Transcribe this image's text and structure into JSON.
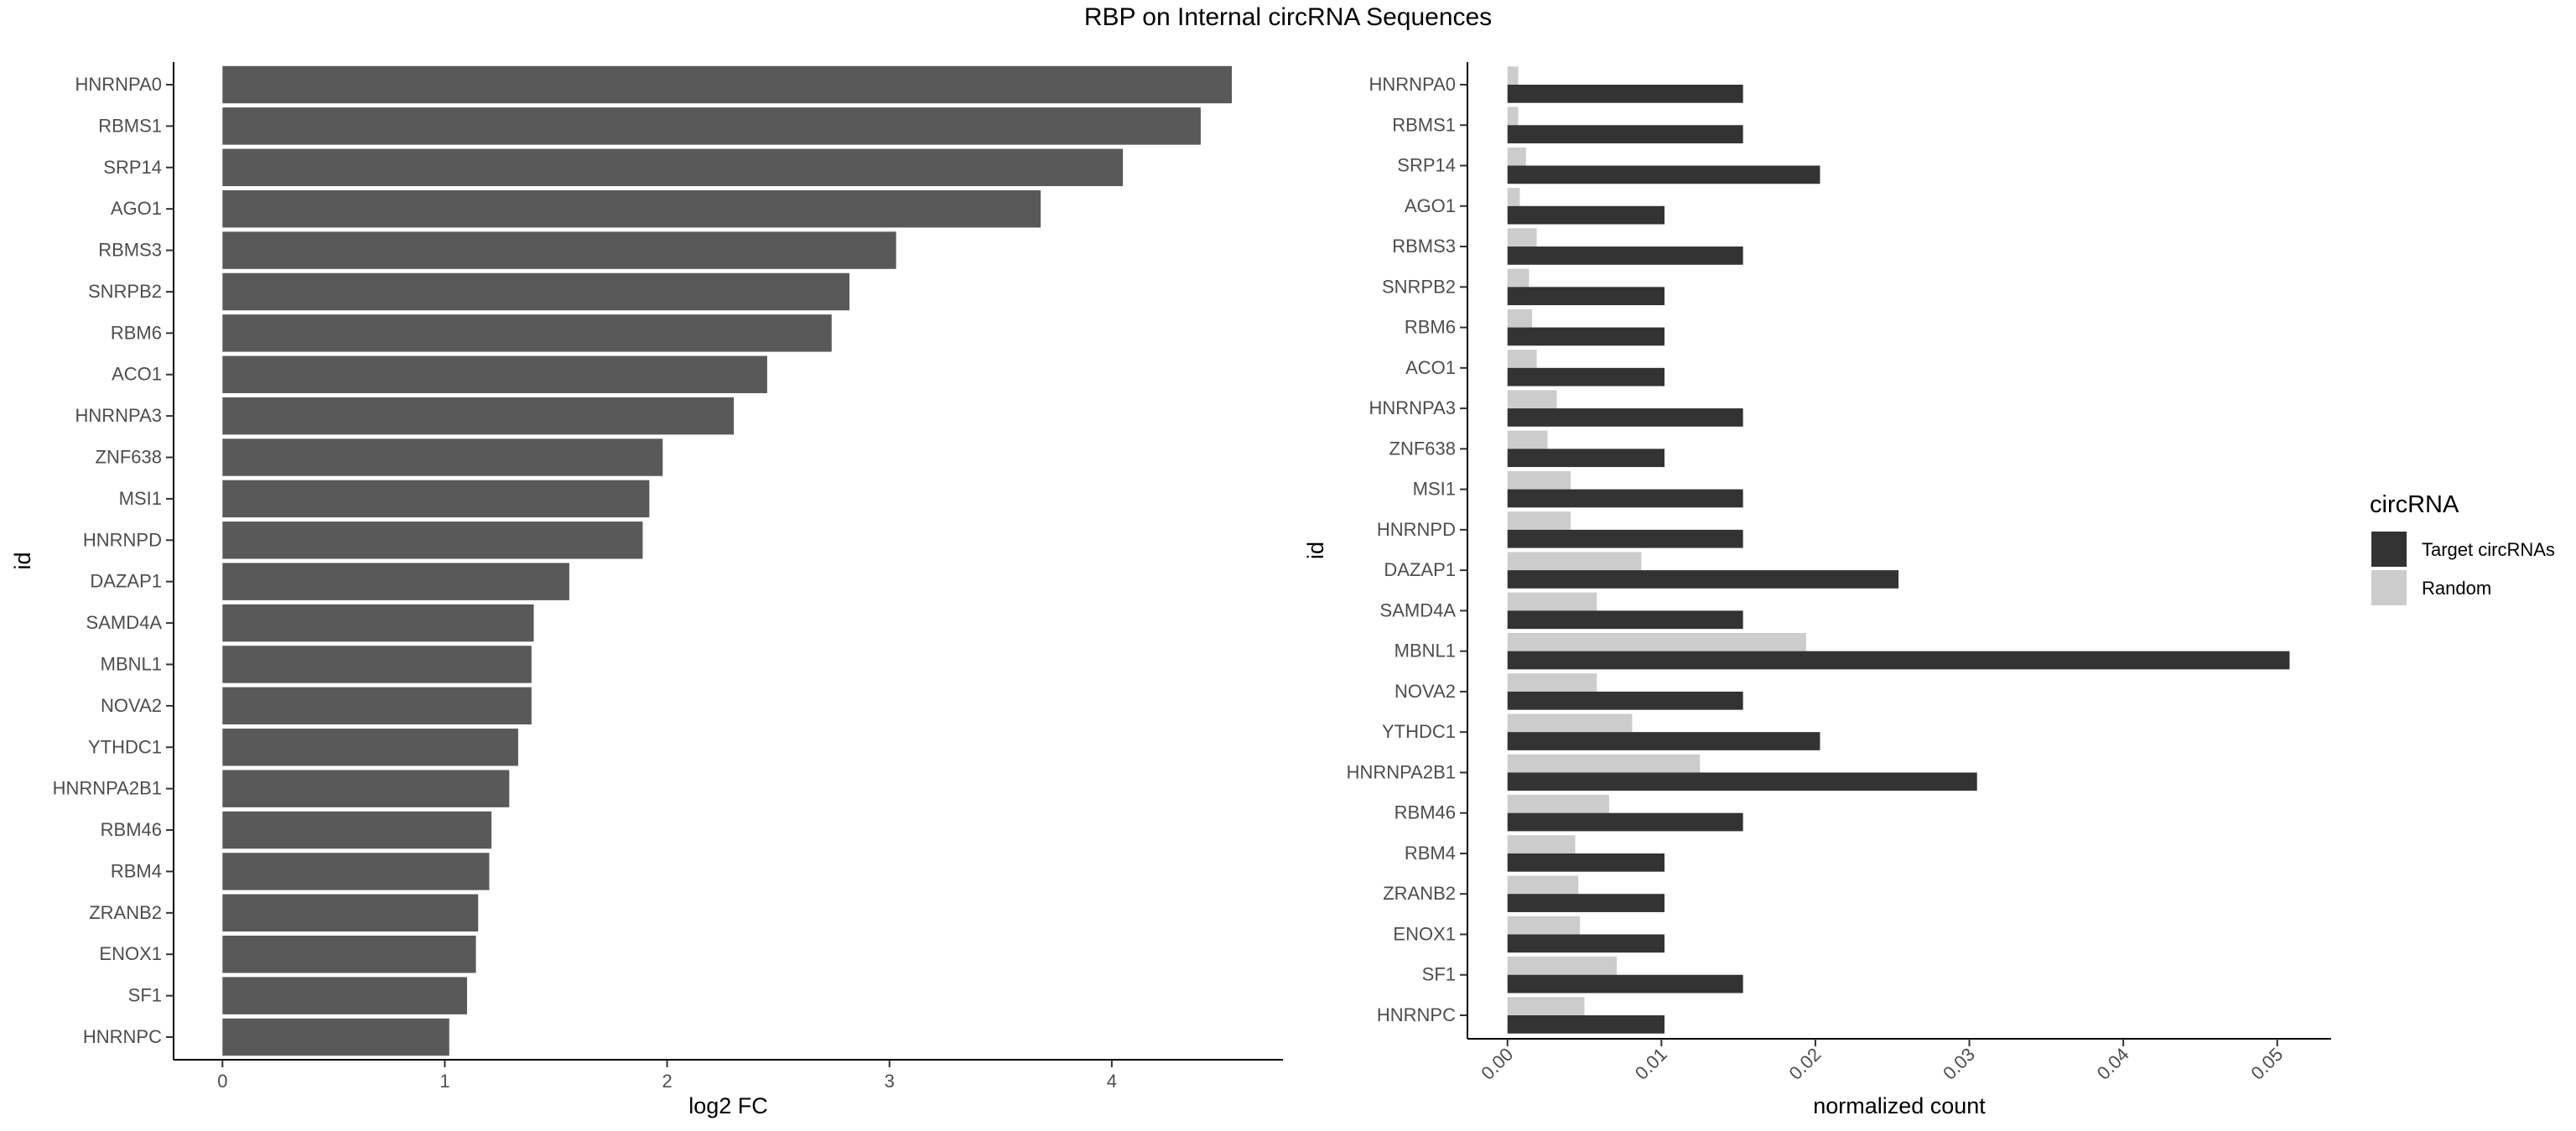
{
  "title": "RBP on Internal circRNA Sequences",
  "chart_data": [
    {
      "type": "bar",
      "orientation": "horizontal",
      "xlabel": "log2 FC",
      "ylabel": "id",
      "xlim": [
        -0.22,
        4.77
      ],
      "xticks": [
        0,
        1,
        2,
        3,
        4
      ],
      "grid": false,
      "color": "#595959",
      "categories": [
        "HNRNPA0",
        "RBMS1",
        "SRP14",
        "AGO1",
        "RBMS3",
        "SNRPB2",
        "RBM6",
        "ACO1",
        "HNRNPA3",
        "ZNF638",
        "MSI1",
        "HNRNPD",
        "DAZAP1",
        "SAMD4A",
        "MBNL1",
        "NOVA2",
        "YTHDC1",
        "HNRNPA2B1",
        "RBM46",
        "RBM4",
        "ZRANB2",
        "ENOX1",
        "SF1",
        "HNRNPC"
      ],
      "values": [
        4.54,
        4.4,
        4.05,
        3.68,
        3.03,
        2.82,
        2.74,
        2.45,
        2.3,
        1.98,
        1.92,
        1.89,
        1.56,
        1.4,
        1.39,
        1.39,
        1.33,
        1.29,
        1.21,
        1.2,
        1.15,
        1.14,
        1.1,
        1.02
      ]
    },
    {
      "type": "bar",
      "orientation": "horizontal",
      "grouping": "dodge",
      "xlabel": "normalized count",
      "ylabel": "id",
      "xlim": [
        -0.0026,
        0.0535
      ],
      "xticks": [
        "0.00",
        "0.01",
        "0.02",
        "0.03",
        "0.04",
        "0.05"
      ],
      "grid": false,
      "legend": {
        "title": "circRNA",
        "position": "right"
      },
      "categories": [
        "HNRNPA0",
        "RBMS1",
        "SRP14",
        "AGO1",
        "RBMS3",
        "SNRPB2",
        "RBM6",
        "ACO1",
        "HNRNPA3",
        "ZNF638",
        "MSI1",
        "HNRNPD",
        "DAZAP1",
        "SAMD4A",
        "MBNL1",
        "NOVA2",
        "YTHDC1",
        "HNRNPA2B1",
        "RBM46",
        "RBM4",
        "ZRANB2",
        "ENOX1",
        "SF1",
        "HNRNPC"
      ],
      "series": [
        {
          "name": "Target circRNAs",
          "color": "#333333",
          "values": [
            0.0153,
            0.0153,
            0.0203,
            0.0102,
            0.0153,
            0.0102,
            0.0102,
            0.0102,
            0.0153,
            0.0102,
            0.0153,
            0.0153,
            0.0254,
            0.0153,
            0.0508,
            0.0153,
            0.0203,
            0.0305,
            0.0153,
            0.0102,
            0.0102,
            0.0102,
            0.0153,
            0.0102
          ]
        },
        {
          "name": "Random",
          "color": "#cccccc",
          "values": [
            0.0007,
            0.0007,
            0.0012,
            0.0008,
            0.0019,
            0.0014,
            0.0016,
            0.0019,
            0.0032,
            0.0026,
            0.0041,
            0.0041,
            0.0087,
            0.0058,
            0.0194,
            0.0058,
            0.0081,
            0.0125,
            0.0066,
            0.0044,
            0.0046,
            0.0047,
            0.0071,
            0.005
          ]
        }
      ]
    }
  ]
}
